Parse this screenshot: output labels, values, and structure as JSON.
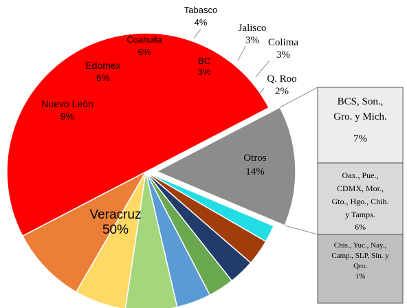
{
  "chart_data": {
    "type": "pie",
    "slices": [
      {
        "name": "Veracruz",
        "value": 50,
        "label": "50%",
        "color": "#ff0000"
      },
      {
        "name": "Otros",
        "value": 14,
        "label": "14%",
        "color": "#8c8c8c",
        "exploded": true
      },
      {
        "name": "Q. Roo",
        "value": 2,
        "label": "2%",
        "color": "#22dde3"
      },
      {
        "name": "Colima",
        "value": 3,
        "label": "3%",
        "color": "#a13d0a"
      },
      {
        "name": "Jalisco",
        "value": 3,
        "label": "3%",
        "color": "#213c6b"
      },
      {
        "name": "BC",
        "value": 3,
        "label": "3%",
        "color": "#6aa84f"
      },
      {
        "name": "Tabasco",
        "value": 4,
        "label": "4%",
        "color": "#5b9bd5"
      },
      {
        "name": "Coahuila",
        "value": 6,
        "label": "6%",
        "color": "#a4d67c"
      },
      {
        "name": "Edomex",
        "value": 6,
        "label": "6%",
        "color": "#ffd966"
      },
      {
        "name": "Nuevo León",
        "value": 9,
        "label": "9%",
        "color": "#ec7f37"
      }
    ],
    "breakdown_of": "Otros",
    "breakdown": [
      {
        "name": "BCS, Son., Gro. y Mich.",
        "value": 7,
        "label": "7%",
        "color": "#ededed"
      },
      {
        "name": "Oax., Pue., CDMX, Mor., Gto., Hgo., Chih. y Tamps.",
        "value": 6,
        "label": "6%",
        "color": "#d9d9d9"
      },
      {
        "name": "Chis., Yuc., Nay., Camp., SLP, Sin. y Qro.",
        "value": 1,
        "label": "1%",
        "color": "#bfbfbf"
      }
    ]
  }
}
